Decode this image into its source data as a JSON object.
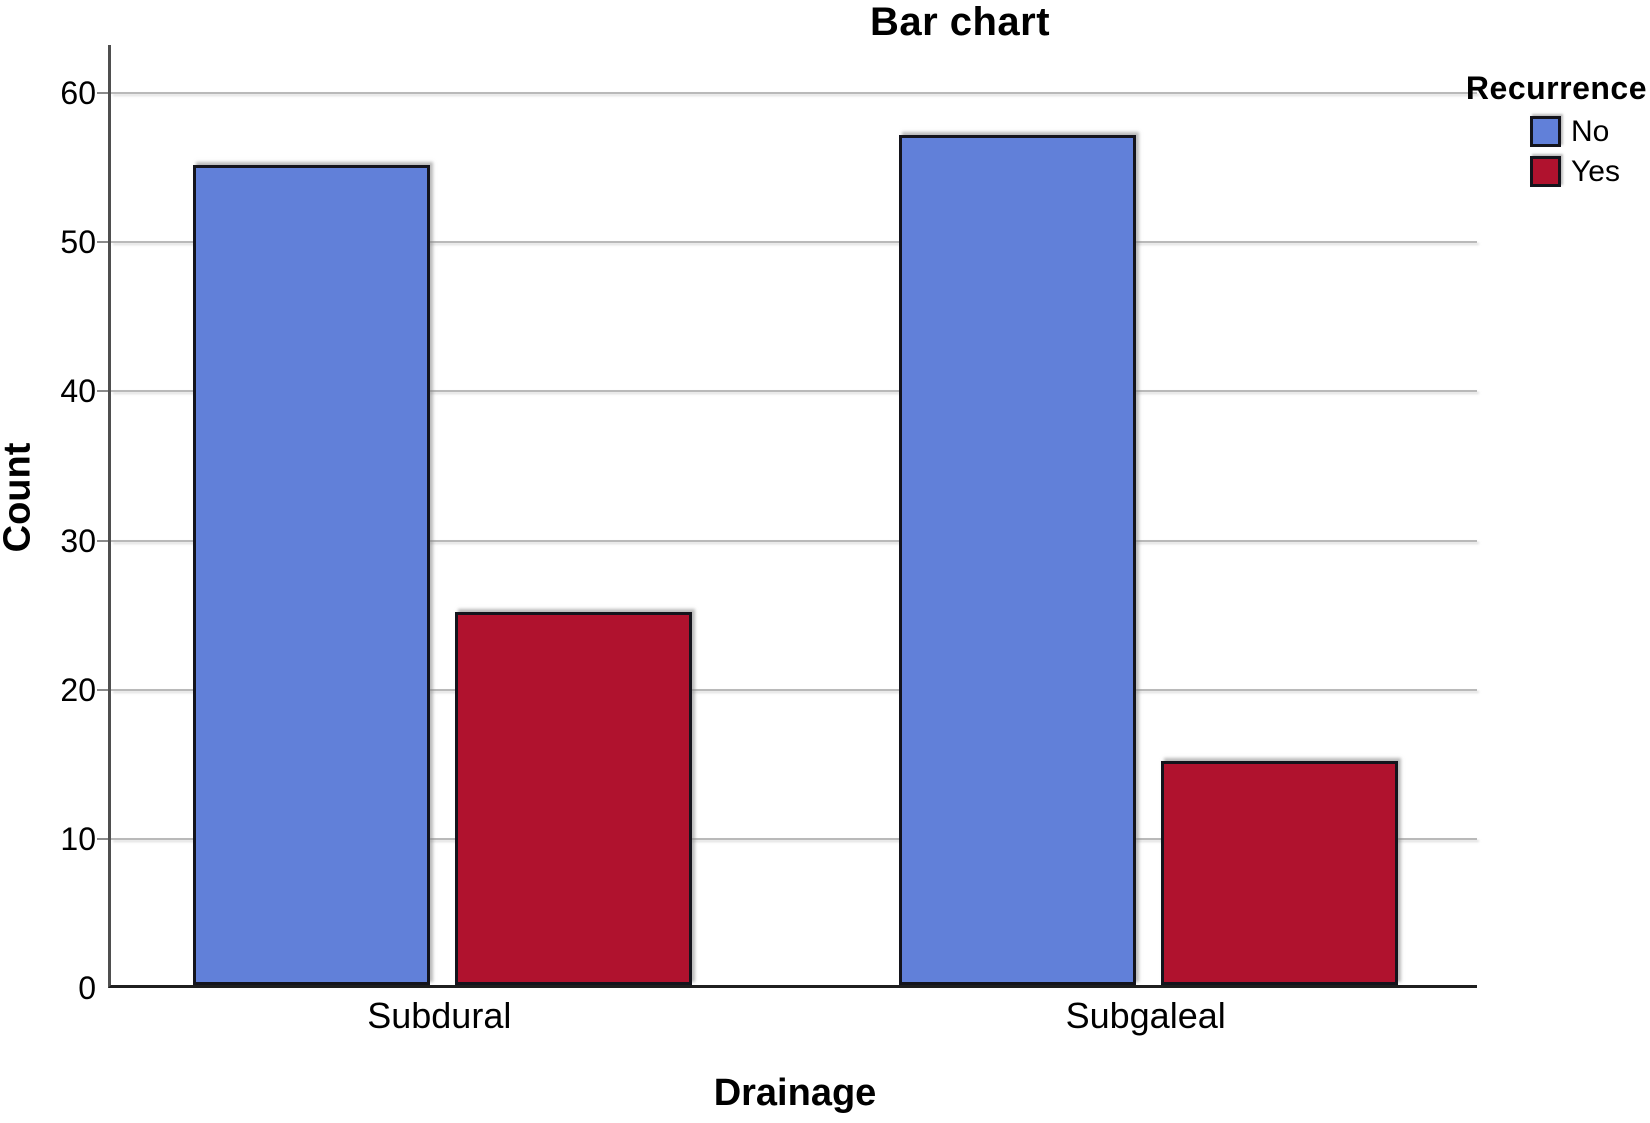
{
  "figure": {
    "background": "#ffffff"
  },
  "chart_data": {
    "type": "bar",
    "title": "Bar chart",
    "xlabel": "Drainage",
    "ylabel": "Count",
    "categories": [
      "Subdural",
      "Subgaleal"
    ],
    "series": [
      {
        "name": "No",
        "color": "#6180d9",
        "values": [
          55,
          57
        ]
      },
      {
        "name": "Yes",
        "color": "#b0122e",
        "values": [
          25,
          15
        ]
      }
    ],
    "ylim": [
      0,
      60
    ],
    "yticks": [
      0,
      10,
      20,
      30,
      40,
      50,
      60
    ],
    "grid": true,
    "legend": {
      "title": "Recurrence",
      "position": "top-right",
      "labels": [
        "No",
        "Yes"
      ]
    }
  },
  "colors": {
    "grid": "#b9b9b9",
    "y_axis": "#4f4f4f",
    "x_axis": "#1f1f1f",
    "bar_border": "#14141c",
    "text": "#000000"
  }
}
